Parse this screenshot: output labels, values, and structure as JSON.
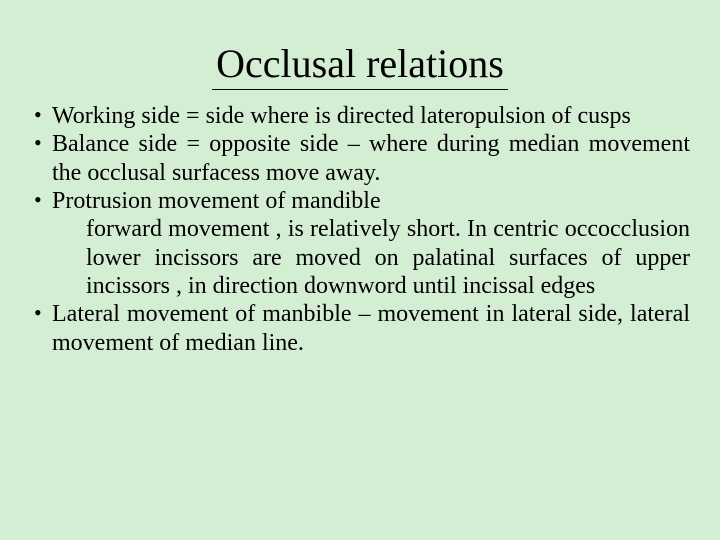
{
  "background_color": "#d4eed4",
  "text_color": "#000000",
  "font_family": "Times New Roman",
  "title": {
    "text": "Occlusal relations",
    "fontsize": 40,
    "underline_color": "#000000"
  },
  "body_fontsize": 24,
  "bullets": [
    {
      "text": "Working side =  side where is directed lateropulsion of cusps"
    },
    {
      "text": "Balance side =  opposite side – where during median movement the occlusal surfacess move away."
    },
    {
      "text": "Protrusion movement of mandible",
      "sub": "forward movement , is relatively short. In centric occocclusion lower incissors are moved on palatinal surfaces of upper incissors , in direction downword until incissal edges"
    },
    {
      "text": "Lateral movement of manbible – movement in lateral side, lateral movement of median line."
    }
  ]
}
